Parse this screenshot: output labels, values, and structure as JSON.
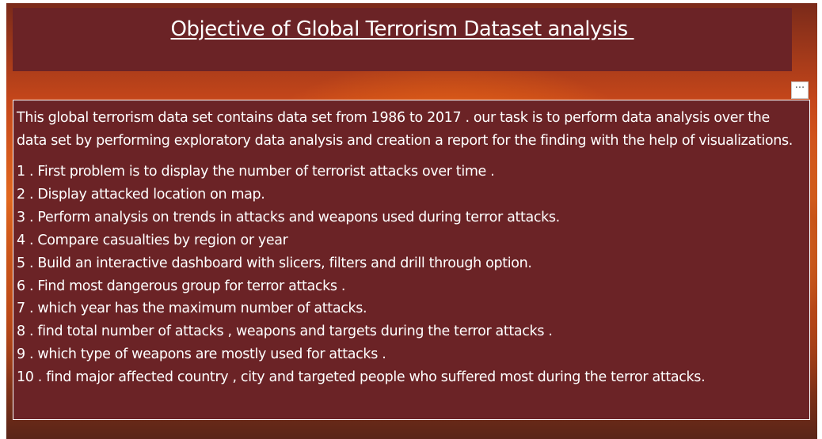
{
  "header": {
    "title": "Objective of Global Terrorism Dataset analysis "
  },
  "visual_header": {
    "more_options_label": "···"
  },
  "content": {
    "intro": "This global terrorism data set contains data set from 1986 to 2017 . our task is to perform data analysis over the data set by performing exploratory data analysis and creation a report for the finding with the help of visualizations.",
    "items": [
      "1 . First problem is to display the number of terrorist attacks over time .",
      "2 . Display attacked location on map.",
      "3 . Perform analysis on trends in attacks and weapons used during terror attacks.",
      "4 . Compare casualties by region or year",
      "5 . Build an interactive dashboard with slicers, filters and drill through option.",
      "6 . Find  most dangerous group for terror attacks .",
      "7 . which year has the maximum number of attacks.",
      "8 . find total number of attacks , weapons  and targets during the terror attacks .",
      "9 . which type of weapons are mostly used for attacks .",
      "10 . find major affected country , city and targeted people who suffered most during the terror attacks."
    ]
  },
  "colors": {
    "panel_background": "#6b2326",
    "text": "#ffffff",
    "border": "#ffffff"
  }
}
